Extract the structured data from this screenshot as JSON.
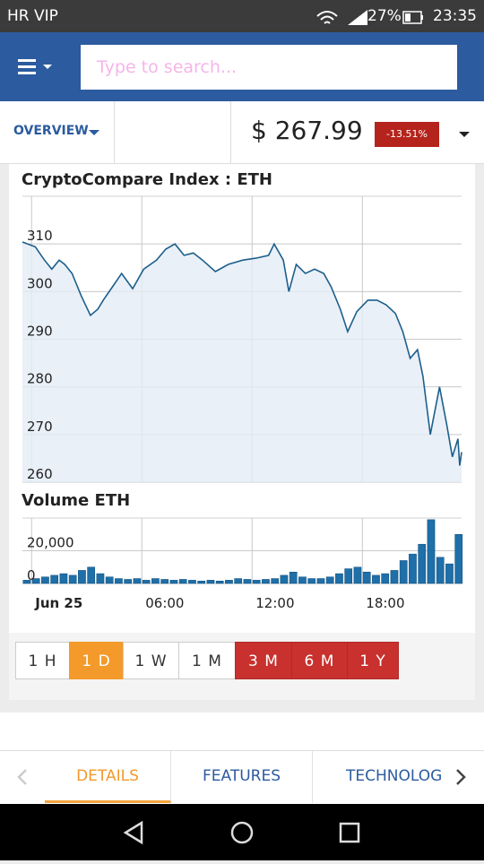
{
  "status_bar": {
    "carrier": "HR VIP",
    "battery": "27%",
    "time": "23:35"
  },
  "search": {
    "placeholder": "Type to search..."
  },
  "overview": {
    "label": "OVERVIEW",
    "price": "$ 267.99",
    "change": "-13.51%"
  },
  "chart_data": [
    {
      "type": "line",
      "title": "CryptoCompare Index : ETH",
      "color": "#1d5f8c",
      "fill": "#e4ecf5",
      "grid": true,
      "xlim": [
        -0.5,
        23.4
      ],
      "xticks": [
        0,
        6,
        12,
        18
      ],
      "ylim": [
        260,
        320
      ],
      "yticks": [
        260,
        270,
        280,
        290,
        300,
        310
      ],
      "x": [
        -0.5,
        0.2,
        0.7,
        1.1,
        1.5,
        1.8,
        2.2,
        2.7,
        3.2,
        3.6,
        3.9,
        4.4,
        4.9,
        5.5,
        6.1,
        6.8,
        7.3,
        7.8,
        8.3,
        8.8,
        9.3,
        10,
        10.7,
        11.5,
        12.2,
        12.9,
        13.2,
        13.7,
        14,
        14.4,
        14.9,
        15.4,
        15.9,
        16.3,
        16.8,
        17.2,
        17.7,
        18.3,
        18.8,
        19.3,
        19.8,
        20.2,
        20.6,
        21,
        21.3,
        21.7,
        22.2,
        22.6,
        22.9,
        23.2,
        23.3,
        23.4
      ],
      "values": [
        310.4,
        309.4,
        306.6,
        304.7,
        306.6,
        305.7,
        303.8,
        299.1,
        295,
        296.3,
        298.2,
        301,
        303.8,
        300.6,
        304.7,
        306.6,
        308.9,
        310,
        307.6,
        308.1,
        306.6,
        304.2,
        305.7,
        306.6,
        307,
        307.6,
        310,
        306.6,
        300,
        305.7,
        303.8,
        304.7,
        303.8,
        301,
        296.3,
        291.6,
        295.8,
        298.2,
        298.2,
        297.2,
        295.4,
        291.6,
        286,
        287.8,
        282.2,
        270,
        280,
        271.9,
        265.3,
        269.1,
        263.5,
        266.3
      ]
    },
    {
      "type": "bar",
      "title": "Volume ETH",
      "color": "#1f6fa8",
      "grid": true,
      "xlim": [
        -0.5,
        23.4
      ],
      "xticks": [
        {
          "value": 0,
          "label": "Jun 25"
        },
        {
          "value": 6,
          "label": "06:00"
        },
        {
          "value": 12,
          "label": "12:00"
        },
        {
          "value": 18,
          "label": "18:00"
        }
      ],
      "ylim": [
        0,
        40000
      ],
      "yticks": [
        0,
        {
          "value": 20000,
          "label": "20,000"
        }
      ],
      "x": [
        -0.5,
        0,
        0.5,
        1,
        1.5,
        2,
        2.5,
        3,
        3.5,
        4,
        4.5,
        5,
        5.5,
        6,
        6.5,
        7,
        7.5,
        8,
        8.5,
        9,
        9.5,
        10,
        10.5,
        11,
        11.5,
        12,
        12.5,
        13,
        13.5,
        14,
        14.5,
        15,
        15.5,
        16,
        16.5,
        17,
        17.5,
        18,
        18.5,
        19,
        19.5,
        20,
        20.5,
        21,
        21.5,
        22,
        22.5,
        23
      ],
      "values": [
        2000,
        3000,
        4000,
        5000,
        6000,
        5000,
        8000,
        10000,
        6000,
        4000,
        3000,
        2500,
        3000,
        2000,
        3000,
        2500,
        2000,
        2500,
        2000,
        1500,
        2000,
        1500,
        2000,
        3000,
        2500,
        2000,
        2500,
        3000,
        5000,
        7000,
        4000,
        3000,
        3000,
        4000,
        6000,
        9000,
        10000,
        7000,
        5000,
        6000,
        8000,
        14000,
        18000,
        24000,
        39000,
        16000,
        12000,
        30000
      ]
    }
  ],
  "range_buttons": [
    "1 H",
    "1 D",
    "1 W",
    "1 M",
    "3 M",
    "6 M",
    "1 Y"
  ],
  "tabs": [
    "DETAILS",
    "FEATURES",
    "TECHNOLOGY"
  ]
}
